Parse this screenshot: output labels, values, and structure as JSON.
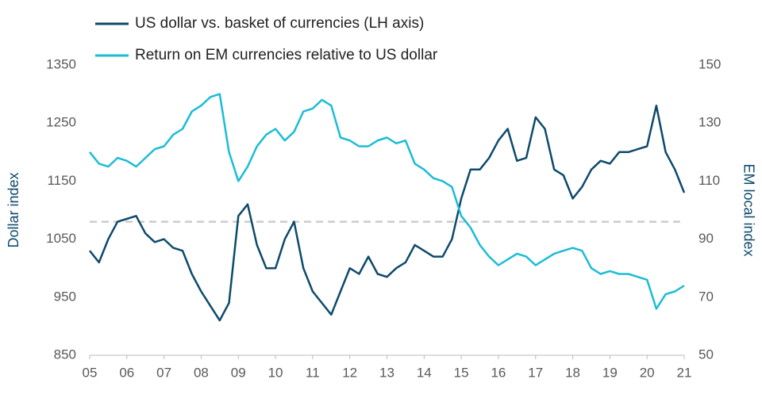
{
  "chart_data": {
    "type": "line",
    "x": [
      5,
      5.25,
      5.5,
      5.75,
      6,
      6.25,
      6.5,
      6.75,
      7,
      7.25,
      7.5,
      7.75,
      8,
      8.25,
      8.5,
      8.75,
      9,
      9.25,
      9.5,
      9.75,
      10,
      10.25,
      10.5,
      10.75,
      11,
      11.25,
      11.5,
      11.75,
      12,
      12.25,
      12.5,
      12.75,
      13,
      13.25,
      13.5,
      13.75,
      14,
      14.25,
      14.5,
      14.75,
      15,
      15.25,
      15.5,
      15.75,
      16,
      16.25,
      16.5,
      16.75,
      17,
      17.25,
      17.5,
      17.75,
      18,
      18.25,
      18.5,
      18.75,
      19,
      19.25,
      19.5,
      19.75,
      20,
      20.25,
      20.5,
      20.75,
      21
    ],
    "series": [
      {
        "name": "US dollar vs. basket of currencies (LH axis)",
        "color": "#0d4a6b",
        "values": [
          1030,
          1010,
          1050,
          1080,
          1085,
          1090,
          1060,
          1045,
          1050,
          1035,
          1030,
          990,
          960,
          935,
          910,
          940,
          1090,
          1110,
          1040,
          1000,
          1000,
          1050,
          1080,
          1000,
          960,
          940,
          920,
          960,
          1000,
          990,
          1020,
          990,
          985,
          1000,
          1010,
          1040,
          1030,
          1020,
          1020,
          1050,
          1120,
          1170,
          1170,
          1190,
          1220,
          1240,
          1185,
          1190,
          1260,
          1240,
          1170,
          1160,
          1120,
          1140,
          1170,
          1185,
          1180,
          1200,
          1200,
          1205,
          1210,
          1280,
          1200,
          1170,
          1130
        ]
      },
      {
        "name": "Return on EM currencies relative to US dollar",
        "color": "#1bbcd6",
        "axis": "y2",
        "values": [
          120,
          116,
          115,
          118,
          117,
          115,
          118,
          121,
          122,
          126,
          128,
          134,
          136,
          139,
          140,
          120,
          110,
          115,
          122,
          126,
          128,
          124,
          127,
          134,
          135,
          138,
          136,
          125,
          124,
          122,
          122,
          124,
          125,
          123,
          124,
          116,
          114,
          111,
          110,
          108,
          98,
          94,
          88,
          84,
          81,
          83,
          85,
          84,
          81,
          83,
          85,
          86,
          87,
          86,
          80,
          78,
          79,
          78,
          78,
          77,
          76,
          66,
          71,
          72,
          74
        ]
      }
    ],
    "xlim": [
      5,
      21
    ],
    "xticks": [
      {
        "value": 5,
        "label": "05"
      },
      {
        "value": 6,
        "label": "06"
      },
      {
        "value": 7,
        "label": "07"
      },
      {
        "value": 8,
        "label": "08"
      },
      {
        "value": 9,
        "label": "09"
      },
      10,
      11,
      12,
      13,
      14,
      15,
      16,
      17,
      18,
      19,
      20,
      21
    ],
    "ylim": [
      850,
      1350
    ],
    "yticks": [
      850,
      950,
      1050,
      1150,
      1250,
      1350
    ],
    "y2lim": [
      50,
      150
    ],
    "y2ticks": [
      50,
      70,
      90,
      110,
      130,
      150
    ],
    "ylabel": "Dollar index",
    "y2label": "EM local index",
    "reference_line": {
      "value": 1080,
      "color": "#cccccc"
    }
  }
}
